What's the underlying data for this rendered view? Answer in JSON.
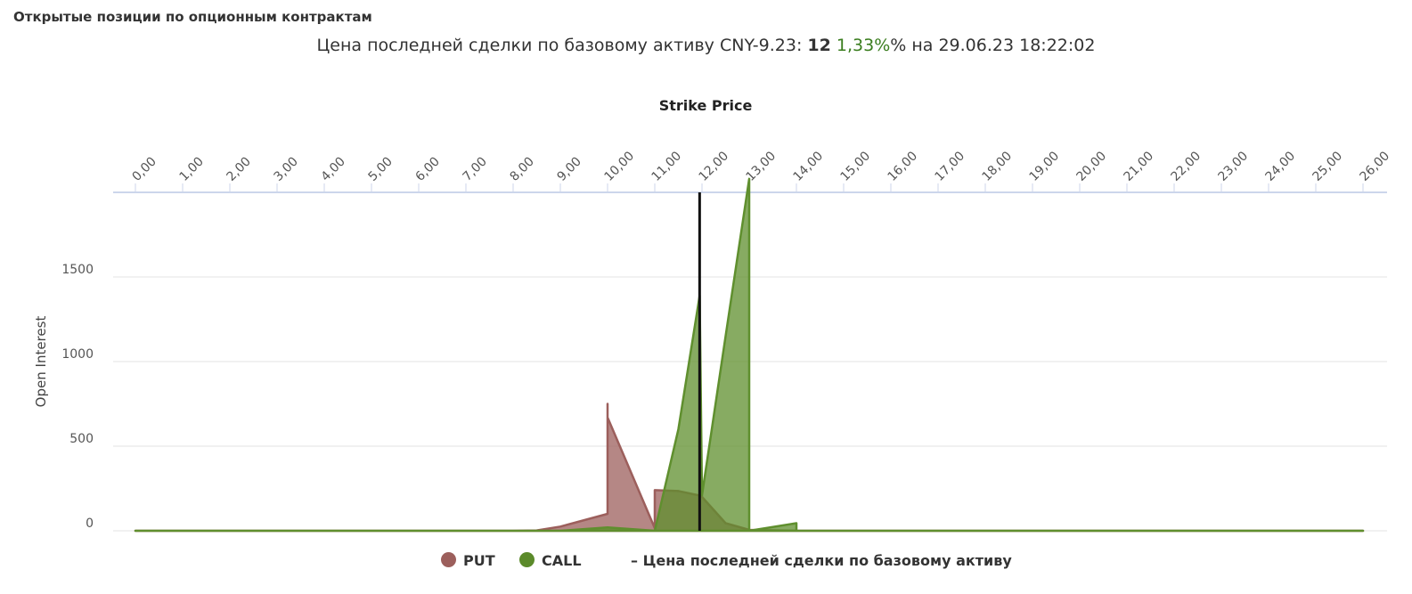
{
  "header": {
    "title": "Открытые позиции по опционным контрактам",
    "price_prefix": "Цена последней сделки по базовому активу CNY-9.23: ",
    "price_value": "12",
    "price_change": " 1,33%",
    "price_suffix": "% на 29.06.23 18:22:02"
  },
  "chart_data": {
    "type": "area",
    "title": "Strike Price",
    "xlabel": "Strike Price",
    "ylabel": "Open Interest",
    "x_tick_labels": [
      "0,00",
      "1,00",
      "2,00",
      "3,00",
      "4,00",
      "5,00",
      "6,00",
      "7,00",
      "8,00",
      "9,00",
      "10,00",
      "11,00",
      "12,00",
      "13,00",
      "14,00",
      "15,00",
      "16,00",
      "17,00",
      "18,00",
      "19,00",
      "20,00",
      "21,00",
      "22,00",
      "23,00",
      "24,00",
      "25,00",
      "26,00"
    ],
    "y_tick_labels": [
      "0",
      "500",
      "1000",
      "1500"
    ],
    "y_ticks": [
      0,
      500,
      1000,
      1500
    ],
    "xlim": [
      0,
      26
    ],
    "ylim": [
      0,
      2000
    ],
    "grid": true,
    "series": [
      {
        "name": "PUT",
        "color": "#9c5f5c",
        "points": [
          [
            0,
            0
          ],
          [
            8,
            0
          ],
          [
            8.5,
            2
          ],
          [
            9,
            25
          ],
          [
            10,
            100
          ],
          [
            10,
            750
          ],
          [
            10,
            670
          ],
          [
            11,
            15
          ],
          [
            11,
            240
          ],
          [
            11.5,
            235
          ],
          [
            12,
            205
          ],
          [
            12,
            200
          ],
          [
            12.5,
            45
          ],
          [
            13,
            5
          ],
          [
            14,
            0
          ],
          [
            26,
            0
          ]
        ]
      },
      {
        "name": "CALL",
        "color": "#5f8f2e",
        "points": [
          [
            0,
            0
          ],
          [
            9,
            0
          ],
          [
            10,
            20
          ],
          [
            11,
            0
          ],
          [
            11.5,
            600
          ],
          [
            11.95,
            1390
          ],
          [
            12,
            210
          ],
          [
            12.5,
            1150
          ],
          [
            13,
            2080
          ],
          [
            13,
            0
          ],
          [
            14,
            45
          ],
          [
            14,
            0
          ],
          [
            26,
            0
          ]
        ]
      }
    ],
    "underlying_price": 11.95,
    "legend": [
      "PUT",
      "CALL",
      "– Цена последней сделки по базовому активу"
    ],
    "legend_position": "bottom"
  },
  "legend": {
    "put_label": "PUT",
    "call_label": "CALL",
    "line_label": "– Цена последней сделки по базовому активу"
  }
}
